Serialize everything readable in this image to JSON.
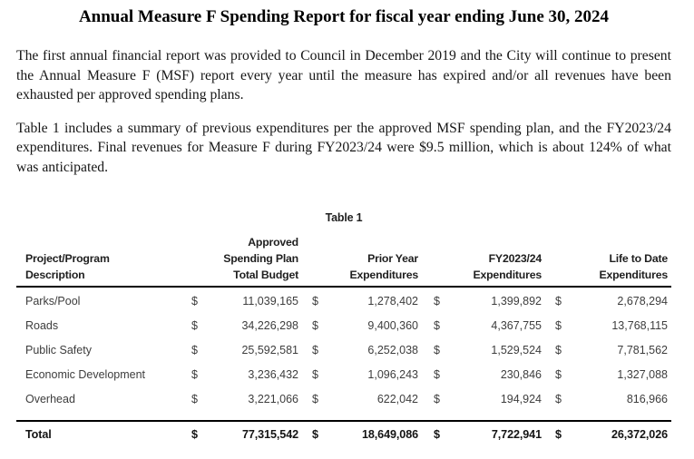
{
  "report": {
    "title": "Annual Measure F Spending Report for fiscal year ending June 30, 2024",
    "paragraph1": "The first annual financial report was provided to Council in December 2019 and the City will continue to present the Annual Measure F (MSF) report every year until the measure has expired and/or all revenues have been exhausted per approved spending plans.",
    "paragraph2": "Table 1 includes a summary of previous expenditures per the approved MSF spending plan, and the FY2023/24 expenditures. Final revenues for Measure F during FY2023/24 were $9.5 million, which is about 124% of what was anticipated."
  },
  "table": {
    "caption": "Table 1",
    "currency": "$",
    "headers": {
      "description": "Project/Program\nDescription",
      "approved": "Approved\nSpending Plan\nTotal Budget",
      "prior": "Prior Year\nExpenditures",
      "fy": "FY2023/24\nExpenditures",
      "ltd": "Life to Date\nExpenditures"
    },
    "rows": [
      {
        "label": "Parks/Pool",
        "approved": "11,039,165",
        "prior": "1,278,402",
        "fy": "1,399,892",
        "ltd": "2,678,294"
      },
      {
        "label": "Roads",
        "approved": "34,226,298",
        "prior": "9,400,360",
        "fy": "4,367,755",
        "ltd": "13,768,115"
      },
      {
        "label": "Public Safety",
        "approved": "25,592,581",
        "prior": "6,252,038",
        "fy": "1,529,524",
        "ltd": "7,781,562"
      },
      {
        "label": "Economic Development",
        "approved": "3,236,432",
        "prior": "1,096,243",
        "fy": "230,846",
        "ltd": "1,327,088"
      },
      {
        "label": "Overhead",
        "approved": "3,221,066",
        "prior": "622,042",
        "fy": "194,924",
        "ltd": "816,966"
      }
    ],
    "total": {
      "label": "Total",
      "approved": "77,315,542",
      "prior": "18,649,086",
      "fy": "7,722,941",
      "ltd": "26,372,026"
    }
  }
}
